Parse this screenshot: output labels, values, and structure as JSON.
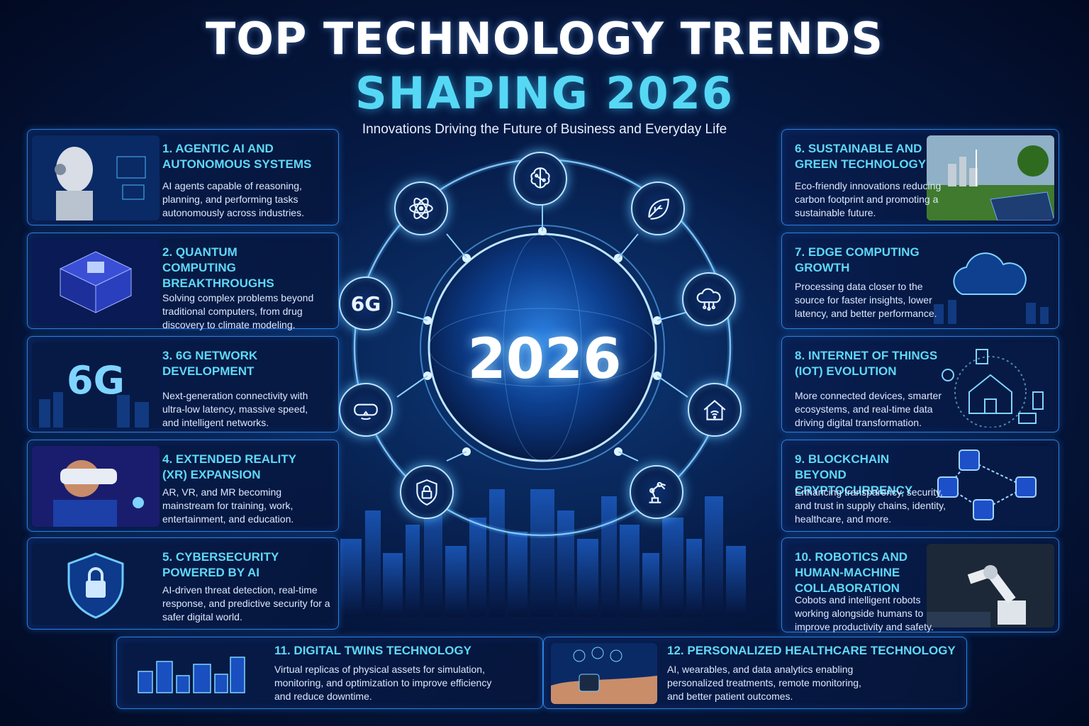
{
  "header": {
    "title_line1": "TOP TECHNOLOGY TRENDS",
    "title_line2": "SHAPING 2026",
    "subtitle": "Innovations Driving the Future of Business and Everyday Life"
  },
  "center": {
    "year": "2026",
    "node_6g_label": "6G",
    "nodes": [
      "brain-icon",
      "leaf-icon",
      "cloud-icon",
      "smart-home-icon",
      "robot-arm-icon",
      "lock-shield-icon",
      "vr-headset-icon",
      "6g-label",
      "atom-icon"
    ]
  },
  "trends": [
    {
      "title": "1. AGENTIC AI AND AUTONOMOUS SYSTEMS",
      "desc": "AI agents capable of reasoning, planning, and performing tasks autonomously across industries."
    },
    {
      "title": "2. QUANTUM COMPUTING BREAKTHROUGHS",
      "desc": "Solving complex problems beyond traditional computers, from drug discovery to climate modeling."
    },
    {
      "title": "3. 6G NETWORK DEVELOPMENT",
      "desc": "Next-generation connectivity with ultra-low latency, massive speed, and intelligent networks.",
      "image_text": "6G"
    },
    {
      "title": "4. EXTENDED REALITY (XR) EXPANSION",
      "desc": "AR, VR, and MR becoming mainstream for training, work, entertainment, and education."
    },
    {
      "title": "5. CYBERSECURITY POWERED BY AI",
      "desc": "AI-driven threat detection, real-time response, and predictive security for a safer digital world."
    },
    {
      "title": "6. SUSTAINABLE AND GREEN TECHNOLOGY",
      "desc": "Eco-friendly innovations reducing carbon footprint and promoting a sustainable future."
    },
    {
      "title": "7. EDGE COMPUTING GROWTH",
      "desc": "Processing data closer to the source for faster insights, lower latency, and better performance."
    },
    {
      "title": "8. INTERNET OF THINGS (IOT) EVOLUTION",
      "desc": "More connected devices, smarter ecosystems, and real-time data driving digital transformation."
    },
    {
      "title": "9. BLOCKCHAIN BEYOND CRYPTOCURRENCY",
      "desc": "Enhancing transparency, security, and trust in supply chains, identity, healthcare, and more."
    },
    {
      "title": "10. ROBOTICS AND HUMAN-MACHINE COLLABORATION",
      "desc": "Cobots and intelligent robots working alongside humans to improve productivity and safety."
    },
    {
      "title": "11. DIGITAL TWINS TECHNOLOGY",
      "desc": "Virtual replicas of physical assets for simulation, monitoring, and optimization to improve efficiency and reduce downtime."
    },
    {
      "title": "12. PERSONALIZED HEALTHCARE TECHNOLOGY",
      "desc": "AI, wearables, and data analytics enabling personalized treatments, remote monitoring, and better patient outcomes."
    }
  ],
  "colors": {
    "accent": "#5fd8f7",
    "card_border": "#2f7fd9",
    "background": "#061a45"
  }
}
